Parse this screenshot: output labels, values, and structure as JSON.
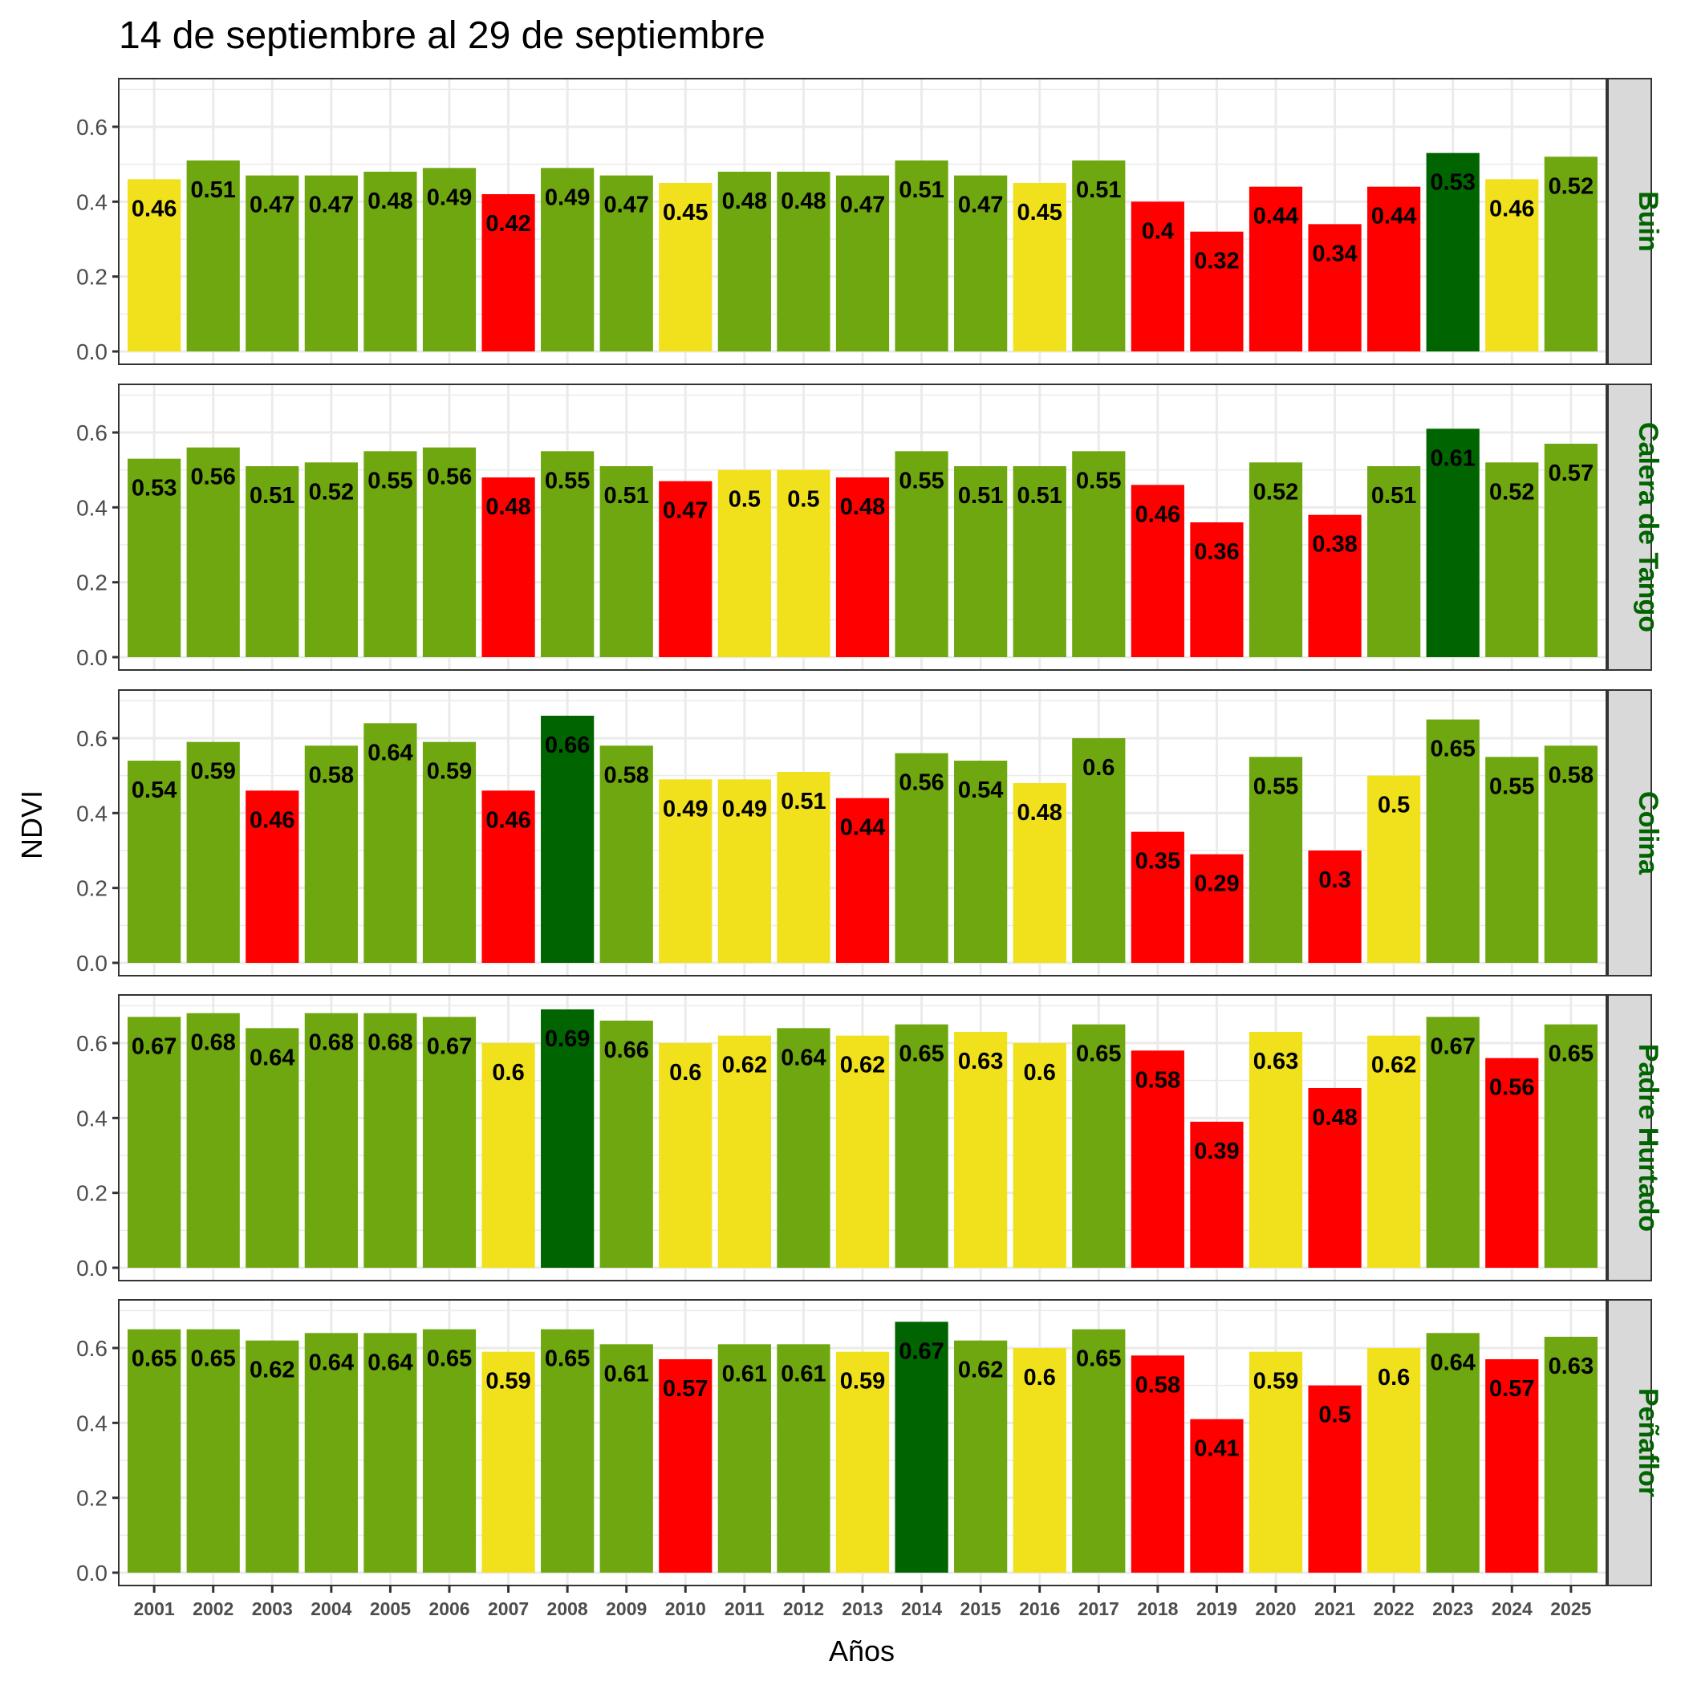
{
  "chart_data": {
    "type": "bar",
    "title": "14 de septiembre al 29 de septiembre",
    "xlabel": "Años",
    "ylabel": "NDVI",
    "ylim": [
      0,
      0.72
    ],
    "yticks": [
      0.0,
      0.2,
      0.4,
      0.6
    ],
    "ytick_labels": [
      "0.0",
      "0.2",
      "0.4",
      "0.6"
    ],
    "grid": true,
    "facet_direction": "rows",
    "strip_text_color": "#006400",
    "colors": {
      "high": "#006400",
      "normal": "#6ea70f",
      "moderate": "#f0e11c",
      "low": "#ff0000"
    },
    "categories": [
      "2001",
      "2002",
      "2003",
      "2004",
      "2005",
      "2006",
      "2007",
      "2008",
      "2009",
      "2010",
      "2011",
      "2012",
      "2013",
      "2014",
      "2015",
      "2016",
      "2017",
      "2018",
      "2019",
      "2020",
      "2021",
      "2022",
      "2023",
      "2024",
      "2025"
    ],
    "panels": [
      {
        "name": "Buin",
        "values": [
          0.46,
          0.51,
          0.47,
          0.47,
          0.48,
          0.49,
          0.42,
          0.49,
          0.47,
          0.45,
          0.48,
          0.48,
          0.47,
          0.51,
          0.47,
          0.45,
          0.51,
          0.4,
          0.32,
          0.44,
          0.34,
          0.44,
          0.53,
          0.46,
          0.52
        ],
        "labels": [
          "0.46",
          "0.51",
          "0.47",
          "0.47",
          "0.48",
          "0.49",
          "0.42",
          "0.49",
          "0.47",
          "0.45",
          "0.48",
          "0.48",
          "0.47",
          "0.51",
          "0.47",
          "0.45",
          "0.51",
          "0.4",
          "0.32",
          "0.44",
          "0.34",
          "0.44",
          "0.53",
          "0.46",
          "0.52"
        ],
        "classes": [
          "moderate",
          "normal",
          "normal",
          "normal",
          "normal",
          "normal",
          "low",
          "normal",
          "normal",
          "moderate",
          "normal",
          "normal",
          "normal",
          "normal",
          "normal",
          "moderate",
          "normal",
          "low",
          "low",
          "low",
          "low",
          "low",
          "high",
          "moderate",
          "normal"
        ]
      },
      {
        "name": "Calera de Tango",
        "values": [
          0.53,
          0.56,
          0.51,
          0.52,
          0.55,
          0.56,
          0.48,
          0.55,
          0.51,
          0.47,
          0.5,
          0.5,
          0.48,
          0.55,
          0.51,
          0.51,
          0.55,
          0.46,
          0.36,
          0.52,
          0.38,
          0.51,
          0.61,
          0.52,
          0.57
        ],
        "labels": [
          "0.53",
          "0.56",
          "0.51",
          "0.52",
          "0.55",
          "0.56",
          "0.48",
          "0.55",
          "0.51",
          "0.47",
          "0.5",
          "0.5",
          "0.48",
          "0.55",
          "0.51",
          "0.51",
          "0.55",
          "0.46",
          "0.36",
          "0.52",
          "0.38",
          "0.51",
          "0.61",
          "0.52",
          "0.57"
        ],
        "classes": [
          "normal",
          "normal",
          "normal",
          "normal",
          "normal",
          "normal",
          "low",
          "normal",
          "normal",
          "low",
          "moderate",
          "moderate",
          "low",
          "normal",
          "normal",
          "normal",
          "normal",
          "low",
          "low",
          "normal",
          "low",
          "normal",
          "high",
          "normal",
          "normal"
        ]
      },
      {
        "name": "Colina",
        "values": [
          0.54,
          0.59,
          0.46,
          0.58,
          0.64,
          0.59,
          0.46,
          0.66,
          0.58,
          0.49,
          0.49,
          0.51,
          0.44,
          0.56,
          0.54,
          0.48,
          0.6,
          0.35,
          0.29,
          0.55,
          0.3,
          0.5,
          0.65,
          0.55,
          0.58
        ],
        "labels": [
          "0.54",
          "0.59",
          "0.46",
          "0.58",
          "0.64",
          "0.59",
          "0.46",
          "0.66",
          "0.58",
          "0.49",
          "0.49",
          "0.51",
          "0.44",
          "0.56",
          "0.54",
          "0.48",
          "0.6",
          "0.35",
          "0.29",
          "0.55",
          "0.3",
          "0.5",
          "0.65",
          "0.55",
          "0.58"
        ],
        "classes": [
          "normal",
          "normal",
          "low",
          "normal",
          "normal",
          "normal",
          "low",
          "high",
          "normal",
          "moderate",
          "moderate",
          "moderate",
          "low",
          "normal",
          "normal",
          "moderate",
          "normal",
          "low",
          "low",
          "normal",
          "low",
          "moderate",
          "normal",
          "normal",
          "normal"
        ]
      },
      {
        "name": "Padre Hurtado",
        "values": [
          0.67,
          0.68,
          0.64,
          0.68,
          0.68,
          0.67,
          0.6,
          0.69,
          0.66,
          0.6,
          0.62,
          0.64,
          0.62,
          0.65,
          0.63,
          0.6,
          0.65,
          0.58,
          0.39,
          0.63,
          0.48,
          0.62,
          0.67,
          0.56,
          0.65
        ],
        "labels": [
          "0.67",
          "0.68",
          "0.64",
          "0.68",
          "0.68",
          "0.67",
          "0.6",
          "0.69",
          "0.66",
          "0.6",
          "0.62",
          "0.64",
          "0.62",
          "0.65",
          "0.63",
          "0.6",
          "0.65",
          "0.58",
          "0.39",
          "0.63",
          "0.48",
          "0.62",
          "0.67",
          "0.56",
          "0.65"
        ],
        "classes": [
          "normal",
          "normal",
          "normal",
          "normal",
          "normal",
          "normal",
          "moderate",
          "high",
          "normal",
          "moderate",
          "moderate",
          "normal",
          "moderate",
          "normal",
          "moderate",
          "moderate",
          "normal",
          "low",
          "low",
          "moderate",
          "low",
          "moderate",
          "normal",
          "low",
          "normal"
        ]
      },
      {
        "name": "Peñaflor",
        "values": [
          0.65,
          0.65,
          0.62,
          0.64,
          0.64,
          0.65,
          0.59,
          0.65,
          0.61,
          0.57,
          0.61,
          0.61,
          0.59,
          0.67,
          0.62,
          0.6,
          0.65,
          0.58,
          0.41,
          0.59,
          0.5,
          0.6,
          0.64,
          0.57,
          0.63
        ],
        "labels": [
          "0.65",
          "0.65",
          "0.62",
          "0.64",
          "0.64",
          "0.65",
          "0.59",
          "0.65",
          "0.61",
          "0.57",
          "0.61",
          "0.61",
          "0.59",
          "0.67",
          "0.62",
          "0.6",
          "0.65",
          "0.58",
          "0.41",
          "0.59",
          "0.5",
          "0.6",
          "0.64",
          "0.57",
          "0.63"
        ],
        "classes": [
          "normal",
          "normal",
          "normal",
          "normal",
          "normal",
          "normal",
          "moderate",
          "normal",
          "normal",
          "low",
          "normal",
          "normal",
          "moderate",
          "high",
          "normal",
          "moderate",
          "normal",
          "low",
          "low",
          "moderate",
          "low",
          "moderate",
          "normal",
          "low",
          "normal"
        ]
      }
    ]
  }
}
